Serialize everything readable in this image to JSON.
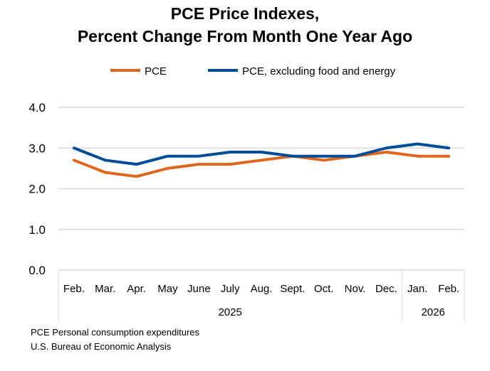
{
  "chart_data": {
    "type": "line",
    "title": [
      "PCE Price Indexes,",
      "Percent Change From Month One Year Ago"
    ],
    "categories": [
      "Feb.",
      "Mar.",
      "Apr.",
      "May",
      "June",
      "July",
      "Aug.",
      "Sept.",
      "Oct.",
      "Nov.",
      "Dec.",
      "Jan.",
      "Feb."
    ],
    "year_groups": [
      {
        "label": "2025",
        "count": 11
      },
      {
        "label": "2026",
        "count": 2
      }
    ],
    "series": [
      {
        "name": "PCE",
        "color": "#E0661E",
        "values": [
          2.7,
          2.4,
          2.3,
          2.5,
          2.6,
          2.6,
          2.7,
          2.8,
          2.7,
          2.8,
          2.9,
          2.8,
          2.8
        ]
      },
      {
        "name": "PCE, excluding food and energy",
        "color": "#004C97",
        "values": [
          3.0,
          2.7,
          2.6,
          2.8,
          2.8,
          2.9,
          2.9,
          2.8,
          2.8,
          2.8,
          3.0,
          3.1,
          3.0
        ]
      }
    ],
    "ylim": [
      0,
      4
    ],
    "yticks": [
      "0.0",
      "1.0",
      "2.0",
      "3.0",
      "4.0"
    ],
    "grid": true,
    "legend": "top"
  },
  "footnotes": [
    "PCE Personal consumption expenditures",
    "U.S. Bureau of Economic Analysis"
  ]
}
